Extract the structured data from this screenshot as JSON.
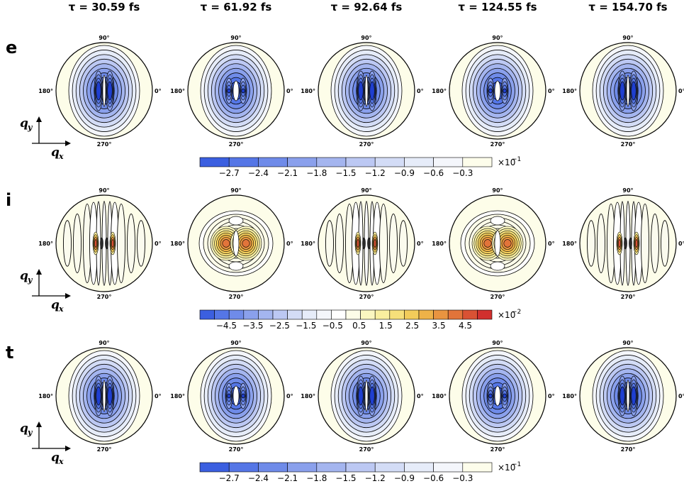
{
  "chart_data": {
    "type": "heatmap",
    "column_titles": [
      "τ = 30.59 fs",
      "τ = 61.92 fs",
      "τ = 92.64 fs",
      "τ = 124.55 fs",
      "τ = 154.70 fs"
    ],
    "angle_labels": {
      "top": "90°",
      "left": "180°",
      "right": "0°",
      "bottom": "270°"
    },
    "axis_labels": {
      "y": "q",
      "y_sub": "y",
      "x": "q",
      "x_sub": "x"
    },
    "rows": [
      {
        "label": "e",
        "panels": [
          {
            "tau": "30.59",
            "pattern": "split",
            "lobes": 2,
            "peak_level": 9
          },
          {
            "tau": "61.92",
            "pattern": "central",
            "lobes": 2,
            "peak_level": 7
          },
          {
            "tau": "92.64",
            "pattern": "split",
            "lobes": 2,
            "peak_level": 9
          },
          {
            "tau": "124.55",
            "pattern": "central",
            "lobes": 2,
            "peak_level": 7
          },
          {
            "tau": "154.70",
            "pattern": "split",
            "lobes": 2,
            "peak_level": 9
          }
        ],
        "colorbar": {
          "ticks": [
            "−2.7",
            "−2.4",
            "−2.1",
            "−1.8",
            "−1.5",
            "−1.2",
            "−0.9",
            "−0.6",
            "−0.3"
          ],
          "exponent_base": "×10",
          "exponent": "−1",
          "colors": [
            "#3b5fe0",
            "#5576e6",
            "#6f8be9",
            "#8aa0ec",
            "#a4b5ef",
            "#bcc8f3",
            "#d3dcf6",
            "#e6ecf9",
            "#f4f6fb",
            "#fdfdeb"
          ]
        }
      },
      {
        "label": "i",
        "panels": [
          {
            "tau": "30.59",
            "pattern": "stripes",
            "stripes": 11
          },
          {
            "tau": "61.92",
            "pattern": "lobes",
            "stripes": 5
          },
          {
            "tau": "92.64",
            "pattern": "stripes",
            "stripes": 11
          },
          {
            "tau": "124.55",
            "pattern": "lobes",
            "stripes": 5
          },
          {
            "tau": "154.70",
            "pattern": "stripes",
            "stripes": 11
          }
        ],
        "colorbar": {
          "ticks": [
            "−4.5",
            "−3.5",
            "−2.5",
            "−1.5",
            "−0.5",
            "0.5",
            "1.5",
            "2.5",
            "3.5",
            "4.5"
          ],
          "exponent_base": "×10",
          "exponent": "−2",
          "colors": [
            "#3b5fe0",
            "#5576e6",
            "#6f8be9",
            "#8aa0ec",
            "#a4b5ef",
            "#bcc8f3",
            "#d3dcf6",
            "#e6ecf9",
            "#f4f6fb",
            "#ffffff",
            "#fdfde8",
            "#fbf7c0",
            "#f9ef9f",
            "#f6e07a",
            "#f2cc5a",
            "#eeb248",
            "#e99440",
            "#e2743a",
            "#d95234",
            "#d1302e"
          ]
        }
      },
      {
        "label": "t",
        "panels": [
          {
            "tau": "30.59",
            "pattern": "split",
            "lobes": 2,
            "peak_level": 9
          },
          {
            "tau": "61.92",
            "pattern": "central",
            "lobes": 2,
            "peak_level": 7
          },
          {
            "tau": "92.64",
            "pattern": "split",
            "lobes": 2,
            "peak_level": 9
          },
          {
            "tau": "124.55",
            "pattern": "central",
            "lobes": 2,
            "peak_level": 7
          },
          {
            "tau": "154.70",
            "pattern": "split",
            "lobes": 2,
            "peak_level": 9
          }
        ],
        "colorbar": {
          "ticks": [
            "−2.7",
            "−2.4",
            "−2.1",
            "−1.8",
            "−1.5",
            "−1.2",
            "−0.9",
            "−0.6",
            "−0.3"
          ],
          "exponent_base": "×10",
          "exponent": "−1",
          "colors": [
            "#3b5fe0",
            "#5576e6",
            "#6f8be9",
            "#8aa0ec",
            "#a4b5ef",
            "#bcc8f3",
            "#d3dcf6",
            "#e6ecf9",
            "#f4f6fb",
            "#fdfdeb"
          ]
        }
      }
    ]
  }
}
